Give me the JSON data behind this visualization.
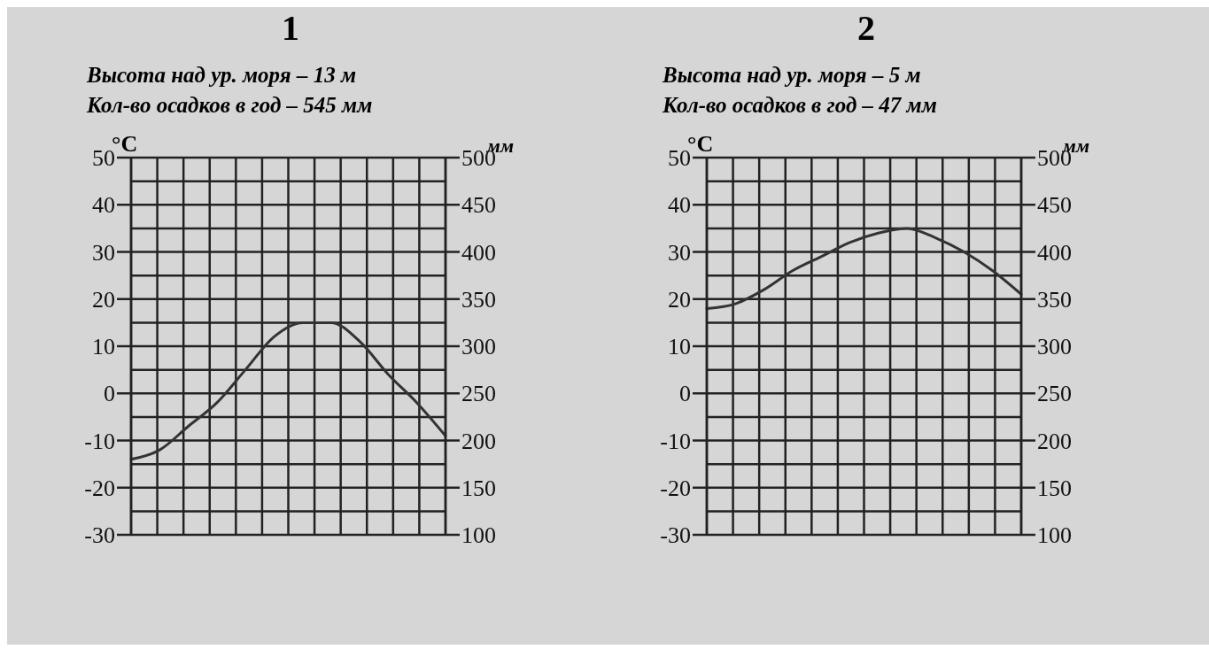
{
  "chart_data": [
    {
      "type": "line",
      "title": "1",
      "subtitle": "Высота над ур. моря – 13 м\nКол-во осадков в год – 545 мм",
      "ylabel": "°C",
      "y2label": "мм",
      "categories": [
        null,
        null,
        null,
        null,
        null,
        null,
        null,
        null,
        null,
        null,
        null,
        null
      ],
      "series": [
        {
          "color": "#333333",
          "values": [
            -14,
            -12,
            -7,
            -2,
            5,
            12,
            15,
            15,
            11,
            4,
            -2,
            -9
          ]
        }
      ],
      "ylim": [
        -30,
        50
      ],
      "yticks": [
        -30,
        -20,
        -10,
        0,
        10,
        20,
        30,
        40,
        50
      ],
      "y2lim": [
        100,
        500
      ],
      "y2ticks": [
        100,
        150,
        200,
        250,
        300,
        350,
        400,
        450,
        500
      ],
      "grid": true,
      "tick_labels": "y",
      "marker": "none"
    },
    {
      "type": "line",
      "title": "2",
      "subtitle": "Высота над ур. моря – 5 м\nКол-во осадков в год – 47 мм",
      "ylabel": "°C",
      "y2label": "мм",
      "categories": [
        null,
        null,
        null,
        null,
        null,
        null,
        null,
        null,
        null,
        null,
        null,
        null
      ],
      "series": [
        {
          "color": "#333333",
          "values": [
            18,
            19,
            22,
            26,
            29,
            32,
            34,
            35,
            33,
            30,
            26,
            21
          ]
        }
      ],
      "ylim": [
        -30,
        50
      ],
      "yticks": [
        -30,
        -20,
        -10,
        0,
        10,
        20,
        30,
        40,
        50
      ],
      "y2lim": [
        100,
        500
      ],
      "y2ticks": [
        100,
        150,
        200,
        250,
        300,
        350,
        400,
        450,
        500
      ],
      "grid": true,
      "tick_labels": "y",
      "marker": "none"
    }
  ]
}
